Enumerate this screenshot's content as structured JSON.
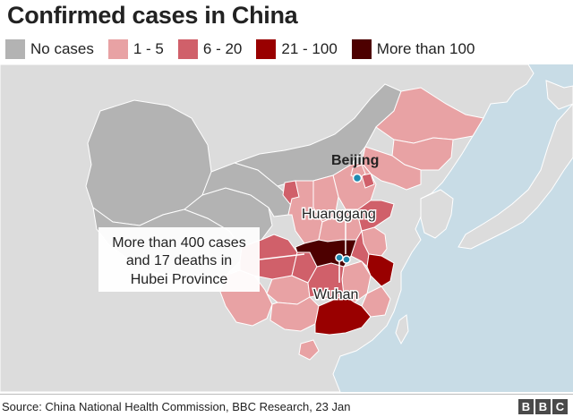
{
  "title": "Confirmed cases in China",
  "legend": [
    {
      "label": "No cases",
      "color": "#b3b3b3"
    },
    {
      "label": "1 - 5",
      "color": "#e8a2a4"
    },
    {
      "label": "6 - 20",
      "color": "#d0606a"
    },
    {
      "label": "21 - 100",
      "color": "#990000"
    },
    {
      "label": "More than 100",
      "color": "#4d0000"
    }
  ],
  "map": {
    "sea_color": "#c8dce6",
    "land_color": "#dcdcdc",
    "border_color": "#ffffff",
    "dot_color": "#1f8ab0"
  },
  "labels": {
    "beijing": "Beijing",
    "huanggang": "Huanggang",
    "wuhan": "Wuhan"
  },
  "callout": {
    "line1": "More than 400 cases",
    "line2": "and 17 deaths in",
    "line3": "Hubei Province"
  },
  "source": "Source: China National Health Commission, BBC Research, 23 Jan",
  "logo": [
    "B",
    "B",
    "C"
  ]
}
